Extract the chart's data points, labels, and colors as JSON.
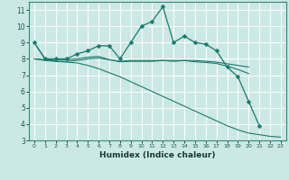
{
  "xlabel": "Humidex (Indice chaleur)",
  "ylabel": "",
  "bg_color": "#cce8e4",
  "grid_color": "#ffffff",
  "line_color": "#1a7a6e",
  "xlim": [
    -0.5,
    23.5
  ],
  "ylim": [
    3,
    11.5
  ],
  "yticks": [
    3,
    4,
    5,
    6,
    7,
    8,
    9,
    10,
    11
  ],
  "xticks": [
    0,
    1,
    2,
    3,
    4,
    5,
    6,
    7,
    8,
    9,
    10,
    11,
    12,
    13,
    14,
    15,
    16,
    17,
    18,
    19,
    20,
    21,
    22,
    23
  ],
  "series": [
    {
      "x": [
        0,
        1,
        2,
        3,
        4,
        5,
        6,
        7,
        8,
        9,
        10,
        11,
        12,
        13,
        14,
        15,
        16,
        17,
        18,
        19,
        20,
        21
      ],
      "y": [
        9.0,
        8.0,
        8.0,
        8.0,
        8.3,
        8.5,
        8.8,
        8.8,
        8.0,
        9.0,
        10.0,
        10.3,
        11.2,
        9.0,
        9.4,
        9.0,
        8.9,
        8.5,
        7.5,
        6.9,
        5.4,
        3.9
      ],
      "marker": "D",
      "markersize": 2.5,
      "linewidth": 0.9
    },
    {
      "x": [
        0,
        1,
        2,
        3,
        4,
        5,
        6,
        7,
        8,
        9,
        10,
        11,
        12,
        13,
        14,
        15,
        16,
        17,
        18,
        19,
        20
      ],
      "y": [
        8.0,
        7.95,
        7.95,
        7.95,
        8.0,
        8.1,
        8.15,
        7.95,
        7.85,
        7.9,
        7.9,
        7.9,
        7.9,
        7.9,
        7.9,
        7.9,
        7.85,
        7.8,
        7.7,
        7.6,
        7.5
      ],
      "marker": null,
      "markersize": 0,
      "linewidth": 0.8
    },
    {
      "x": [
        0,
        1,
        2,
        3,
        4,
        5,
        6,
        7,
        8,
        9,
        10,
        11,
        12,
        13,
        14,
        15,
        16,
        17,
        18,
        19,
        20
      ],
      "y": [
        8.0,
        7.9,
        7.85,
        7.85,
        7.9,
        8.0,
        8.05,
        7.95,
        7.82,
        7.85,
        7.85,
        7.85,
        7.9,
        7.85,
        7.9,
        7.82,
        7.78,
        7.72,
        7.55,
        7.35,
        7.1
      ],
      "marker": null,
      "markersize": 0,
      "linewidth": 0.8
    },
    {
      "x": [
        0,
        1,
        2,
        3,
        4,
        5,
        6,
        7,
        8,
        9,
        10,
        11,
        12,
        13,
        14,
        15,
        16,
        17,
        18,
        19,
        20,
        21,
        22,
        23
      ],
      "y": [
        9.0,
        8.0,
        7.85,
        7.8,
        7.75,
        7.6,
        7.4,
        7.15,
        6.9,
        6.6,
        6.3,
        6.0,
        5.7,
        5.4,
        5.1,
        4.8,
        4.5,
        4.2,
        3.9,
        3.65,
        3.45,
        3.35,
        3.25,
        3.2
      ],
      "marker": null,
      "markersize": 0,
      "linewidth": 0.8
    }
  ]
}
